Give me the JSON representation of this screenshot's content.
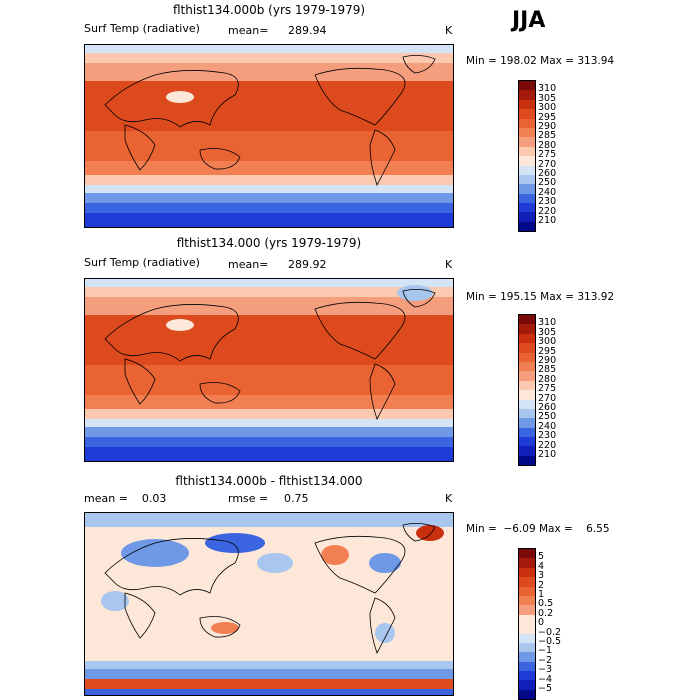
{
  "season": "JJA",
  "panels": [
    {
      "title": "flthist134.000b (yrs 1979-1979)",
      "left_label": "Surf Temp (radiative)",
      "stat_label": "mean=",
      "stat_value": "289.94",
      "unit": "K",
      "minmax": "Min = 198.02 Max = 313.94",
      "colorbar": {
        "labels": [
          "310",
          "305",
          "300",
          "295",
          "290",
          "285",
          "280",
          "275",
          "270",
          "260",
          "250",
          "240",
          "230",
          "220",
          "210"
        ],
        "colors": [
          "#7a0a0a",
          "#a51b0b",
          "#c8300f",
          "#dd4a1d",
          "#ea6333",
          "#f27f52",
          "#f59e7e",
          "#fbc9b0",
          "#fde7d8",
          "#d4e3f6",
          "#a9c6ee",
          "#6f99e6",
          "#3b64e0",
          "#1f3bd6",
          "#0f1fb8",
          "#020a8a"
        ]
      }
    },
    {
      "title": "flthist134.000 (yrs 1979-1979)",
      "left_label": "Surf Temp (radiative)",
      "stat_label": "mean=",
      "stat_value": "289.92",
      "unit": "K",
      "minmax": "Min = 195.15 Max = 313.92",
      "colorbar": {
        "labels": [
          "310",
          "305",
          "300",
          "295",
          "290",
          "285",
          "280",
          "275",
          "270",
          "260",
          "250",
          "240",
          "230",
          "220",
          "210"
        ],
        "colors": [
          "#7a0a0a",
          "#a51b0b",
          "#c8300f",
          "#dd4a1d",
          "#ea6333",
          "#f27f52",
          "#f59e7e",
          "#fbc9b0",
          "#fde7d8",
          "#d4e3f6",
          "#a9c6ee",
          "#6f99e6",
          "#3b64e0",
          "#1f3bd6",
          "#0f1fb8",
          "#020a8a"
        ]
      }
    },
    {
      "title": "flthist134.000b - flthist134.000",
      "left_label": "mean =    0.03",
      "stat_label": "rmse =",
      "stat_value": "0.75",
      "unit": "K",
      "minmax": "Min =  −6.09 Max =    6.55",
      "colorbar": {
        "labels": [
          "5",
          "4",
          "3",
          "2",
          "1",
          "0.5",
          "0.2",
          "0",
          "−0.2",
          "−0.5",
          "−1",
          "−2",
          "−3",
          "−4",
          "−5"
        ],
        "colors": [
          "#7a0a0a",
          "#a51b0b",
          "#c8300f",
          "#dd4a1d",
          "#ea6333",
          "#f27f52",
          "#f59e7e",
          "#fde7d8",
          "#fde7d8",
          "#d4e3f6",
          "#a9c6ee",
          "#6f99e6",
          "#3b64e0",
          "#1f3bd6",
          "#0f1fb8",
          "#020a8a"
        ]
      }
    }
  ]
}
